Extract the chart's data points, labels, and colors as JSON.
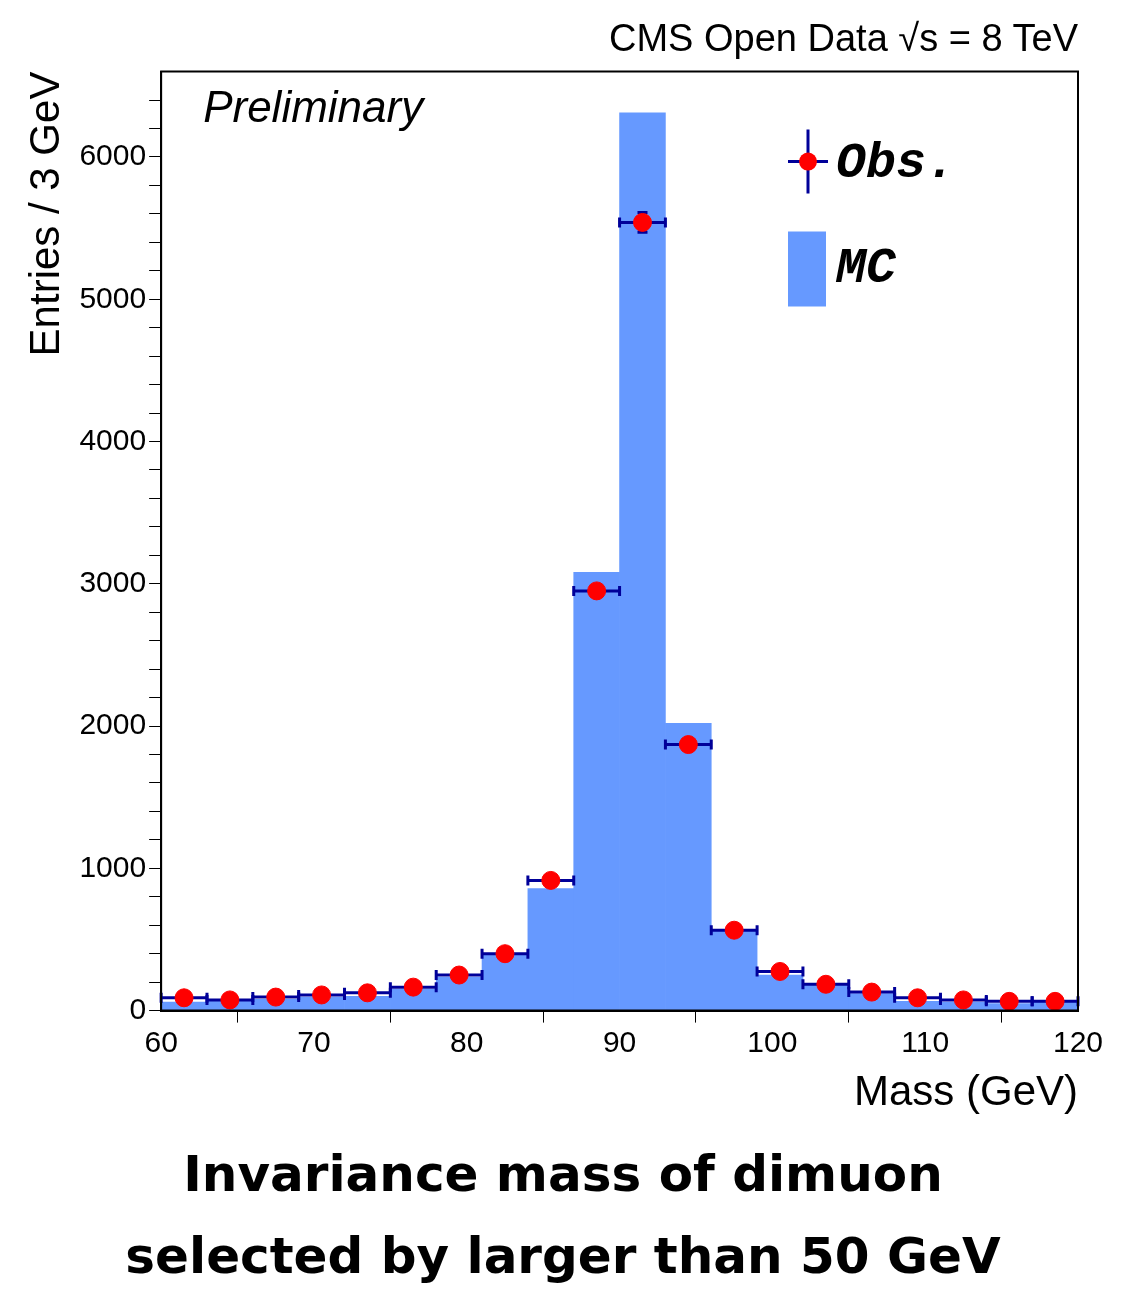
{
  "chart_data": {
    "type": "histogram",
    "title": "CMS Open Data √s = 8 TeV",
    "xlabel": "Mass (GeV)",
    "ylabel": "Entries / 3 GeV",
    "annotations": [
      "Preliminary",
      "Invariance mass of dimuon selected by larger than 50 GeV"
    ],
    "bins": [
      60,
      63,
      66,
      69,
      72,
      75,
      78,
      81,
      84,
      87,
      90,
      93,
      96,
      99,
      102,
      105,
      108,
      111,
      114,
      117,
      120
    ],
    "series": [
      {
        "name": "Obs.",
        "type": "scatter",
        "color": "#ff0000",
        "x": [
          61.5,
          64.5,
          67.5,
          70.5,
          73.5,
          76.5,
          79.5,
          82.5,
          85.5,
          88.5,
          91.5,
          94.5,
          97.5,
          100.5,
          103.5,
          106.5,
          109.5,
          112.5,
          115.5,
          118.5
        ],
        "values": [
          90,
          75,
          95,
          110,
          125,
          165,
          250,
          400,
          915,
          2950,
          5540,
          1870,
          565,
          275,
          185,
          130,
          90,
          75,
          65,
          65
        ],
        "xerrors": [
          1.5,
          1.5,
          1.5,
          1.5,
          1.5,
          1.5,
          1.5,
          1.5,
          1.5,
          1.5,
          1.5,
          1.5,
          1.5,
          1.5,
          1.5,
          1.5,
          1.5,
          1.5,
          1.5,
          1.5
        ],
        "errors": [
          null,
          null,
          null,
          null,
          null,
          null,
          null,
          null,
          null,
          null,
          70,
          null,
          null,
          null,
          null,
          null,
          null,
          null,
          null,
          null
        ],
        "marker": "circle"
      },
      {
        "name": "MC",
        "color": "#6699ff",
        "values": [
          60,
          65,
          80,
          95,
          100,
          150,
          235,
          390,
          858,
          3080,
          6310,
          2020,
          565,
          250,
          180,
          120,
          65,
          60,
          50,
          60
        ]
      }
    ],
    "xlim": [
      60,
      120
    ],
    "xticks": [
      60,
      70,
      80,
      90,
      100,
      110,
      120
    ],
    "ylim": [
      0,
      6600
    ],
    "yticks": [
      0,
      {
        "value": 200,
        "label": null
      },
      {
        "value": 400,
        "label": null
      },
      {
        "value": 600,
        "label": null
      },
      {
        "value": 800,
        "label": null
      },
      1000,
      {
        "value": 1200,
        "label": null
      },
      {
        "value": 1400,
        "label": null
      },
      {
        "value": 1600,
        "label": null
      },
      {
        "value": 1800,
        "label": null
      },
      2000,
      {
        "value": 2200,
        "label": null
      },
      {
        "value": 2400,
        "label": null
      },
      {
        "value": 2600,
        "label": null
      },
      {
        "value": 2800,
        "label": null
      },
      3000,
      {
        "value": 3200,
        "label": null
      },
      {
        "value": 3400,
        "label": null
      },
      {
        "value": 3600,
        "label": null
      },
      {
        "value": 3800,
        "label": null
      },
      4000,
      {
        "value": 4200,
        "label": null
      },
      {
        "value": 4400,
        "label": null
      },
      {
        "value": 4600,
        "label": null
      },
      {
        "value": 4800,
        "label": null
      },
      5000,
      {
        "value": 5200,
        "label": null
      },
      {
        "value": 5400,
        "label": null
      },
      {
        "value": 5600,
        "label": null
      },
      {
        "value": 5800,
        "label": null
      },
      6000,
      {
        "value": 6200,
        "label": null
      },
      {
        "value": 6400,
        "label": null
      }
    ],
    "legend": "top right"
  }
}
